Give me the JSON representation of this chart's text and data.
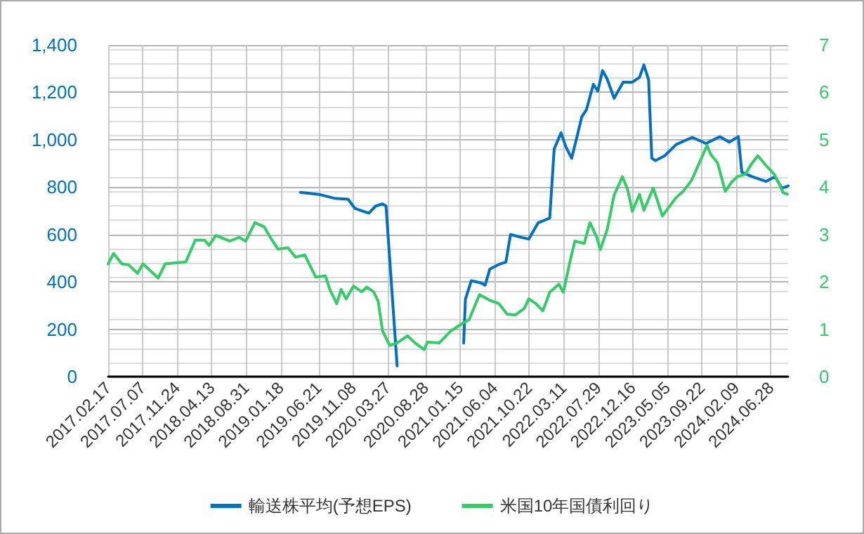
{
  "chart_data": {
    "type": "line",
    "xlim": [
      "2017-02-17",
      "2024-09-06"
    ],
    "xticks": [
      {
        "value": "2017-02-17",
        "label": "2017.02.17"
      },
      {
        "value": "2017-07-07",
        "label": "2017.07.07"
      },
      {
        "value": "2017-11-24",
        "label": "2017.11.24"
      },
      {
        "value": "2018-04-13",
        "label": "2018.04.13"
      },
      {
        "value": "2018-08-31",
        "label": "2018.08.31"
      },
      {
        "value": "2019-01-18",
        "label": "2019.01.18"
      },
      {
        "value": "2019-06-21",
        "label": "2019.06.21"
      },
      {
        "value": "2019-11-08",
        "label": "2019.11.08"
      },
      {
        "value": "2020-03-27",
        "label": "2020.03.27"
      },
      {
        "value": "2020-08-28",
        "label": "2020.08.28"
      },
      {
        "value": "2021-01-15",
        "label": "2021.01.15"
      },
      {
        "value": "2021-06-04",
        "label": "2021.06.04"
      },
      {
        "value": "2021-10-22",
        "label": "2021.10.22"
      },
      {
        "value": "2022-03-11",
        "label": "2022.03.11"
      },
      {
        "value": "2022-07-29",
        "label": "2022.07.29"
      },
      {
        "value": "2022-12-16",
        "label": "2022.12.16"
      },
      {
        "value": "2023-05-05",
        "label": "2023.05.05"
      },
      {
        "value": "2023-09-22",
        "label": "2023.09.22"
      },
      {
        "value": "2024-02-09",
        "label": "2024.02.09"
      },
      {
        "value": "2024-06-28",
        "label": "2024.06.28"
      }
    ],
    "ylim": [
      0,
      1400
    ],
    "yticks": [
      0,
      200,
      400,
      600,
      800,
      {
        "value": 1000,
        "label": "1,000"
      },
      {
        "value": 1200,
        "label": "1,200"
      },
      {
        "value": 1400,
        "label": "1,400"
      }
    ],
    "y2lim": [
      0,
      7
    ],
    "y2ticks": [
      0,
      1,
      2,
      3,
      4,
      5,
      6,
      7
    ],
    "grid": true,
    "legend": "bottom",
    "marker": "none",
    "line_style": "solid",
    "series": [
      {
        "name": "輸送株平均(予想EPS)",
        "color": "#0070c0",
        "x": [
          "2019-04-08",
          "2019-06-28",
          "2019-08-23",
          "2019-10-18",
          "2019-11-15",
          "2020-01-10",
          "2020-02-07",
          "2020-03-06",
          "2020-03-20",
          "2020-05-04",
          "2020-09-04",
          "2021-01-29",
          "2021-02-05",
          "2021-03-01",
          "2021-04-08",
          "2021-04-26",
          "2021-05-15",
          "2021-06-21",
          "2021-07-19",
          "2021-08-07",
          "2021-09-23",
          "2021-10-20",
          "2021-11-27",
          "2022-01-13",
          "2022-01-31",
          "2022-02-28",
          "2022-03-19",
          "2022-04-12",
          "2022-05-05",
          "2022-05-23",
          "2022-06-11",
          "2022-07-09",
          "2022-07-27",
          "2022-08-15",
          "2022-09-03",
          "2022-10-01",
          "2022-11-07",
          "2022-12-14",
          "2023-01-12",
          "2023-01-30",
          "2023-02-18",
          "2023-03-03",
          "2023-03-18",
          "2023-04-24",
          "2023-06-10",
          "2023-08-14",
          "2023-10-09",
          "2023-12-04",
          "2024-01-11",
          "2024-02-17",
          "2024-03-02",
          "2024-04-13",
          "2024-06-08",
          "2024-07-15",
          "2024-08-12",
          "2024-09-06"
        ],
        "values": [
          778,
          768,
          753,
          749,
          710,
          690,
          720,
          729,
          720,
          45,
          null,
          142,
          327,
          405,
          396,
          386,
          454,
          474,
          483,
          600,
          587,
          581,
          649,
          669,
          961,
          1029,
          971,
          922,
          1019,
          1097,
          1127,
          1234,
          1205,
          1292,
          1257,
          1175,
          1243,
          1243,
          1263,
          1316,
          1253,
          922,
          912,
          932,
          980,
          1010,
          984,
          1013,
          990,
          1013,
          863,
          844,
          824,
          844,
          795,
          805
        ]
      },
      {
        "name": "米国10年国債利回り",
        "color": "#33cc66",
        "axis": "y2",
        "x": [
          "2017-02-17",
          "2017-03-11",
          "2017-04-13",
          "2017-05-11",
          "2017-06-16",
          "2017-07-08",
          "2017-09-08",
          "2017-10-06",
          "2017-11-13",
          "2017-12-29",
          "2018-02-05",
          "2018-03-15",
          "2018-04-02",
          "2018-04-30",
          "2018-06-25",
          "2018-08-02",
          "2018-08-29",
          "2018-10-05",
          "2018-11-12",
          "2018-12-10",
          "2019-01-07",
          "2019-02-16",
          "2019-03-19",
          "2019-04-25",
          "2019-06-09",
          "2019-07-18",
          "2019-08-05",
          "2019-09-02",
          "2019-09-20",
          "2019-10-10",
          "2019-11-09",
          "2019-12-13",
          "2020-01-02",
          "2020-01-30",
          "2020-02-17",
          "2020-03-06",
          "2020-04-04",
          "2020-05-04",
          "2020-06-15",
          "2020-07-16",
          "2020-08-22",
          "2020-09-04",
          "2020-10-22",
          "2020-12-07",
          "2021-01-23",
          "2021-02-20",
          "2021-04-03",
          "2021-05-15",
          "2021-06-21",
          "2021-07-24",
          "2021-08-26",
          "2021-10-02",
          "2021-10-20",
          "2021-11-18",
          "2021-12-16",
          "2022-01-13",
          "2022-02-19",
          "2022-03-09",
          "2022-04-07",
          "2022-04-25",
          "2022-06-02",
          "2022-06-25",
          "2022-07-22",
          "2022-08-06",
          "2022-09-03",
          "2022-10-01",
          "2022-11-04",
          "2022-11-26",
          "2022-12-14",
          "2023-01-12",
          "2023-01-30",
          "2023-03-09",
          "2023-04-15",
          "2023-05-13",
          "2023-06-10",
          "2023-07-08",
          "2023-08-11",
          "2023-09-16",
          "2023-10-13",
          "2023-10-28",
          "2023-11-25",
          "2023-12-26",
          "2024-01-20",
          "2024-02-13",
          "2024-03-16",
          "2024-04-13",
          "2024-05-06",
          "2024-06-08",
          "2024-07-12",
          "2024-08-03",
          "2024-08-17",
          "2024-09-03"
        ],
        "values": [
          2.38,
          2.6,
          2.38,
          2.36,
          2.18,
          2.38,
          2.08,
          2.38,
          2.4,
          2.42,
          2.88,
          2.88,
          2.77,
          2.98,
          2.86,
          2.94,
          2.86,
          3.25,
          3.16,
          2.91,
          2.69,
          2.72,
          2.52,
          2.57,
          2.1,
          2.13,
          1.84,
          1.54,
          1.84,
          1.64,
          1.91,
          1.79,
          1.89,
          1.79,
          1.59,
          0.96,
          0.66,
          0.71,
          0.86,
          0.71,
          0.57,
          0.73,
          0.71,
          0.96,
          1.12,
          1.2,
          1.73,
          1.61,
          1.54,
          1.32,
          1.3,
          1.44,
          1.64,
          1.54,
          1.39,
          1.78,
          1.95,
          1.78,
          2.47,
          2.86,
          2.81,
          3.25,
          2.95,
          2.68,
          3.1,
          3.83,
          4.22,
          3.93,
          3.49,
          3.85,
          3.51,
          3.98,
          3.39,
          3.59,
          3.78,
          3.91,
          4.14,
          4.56,
          4.88,
          4.69,
          4.51,
          3.91,
          4.1,
          4.22,
          4.27,
          4.51,
          4.66,
          4.46,
          4.27,
          4.04,
          3.88,
          3.85
        ]
      }
    ]
  }
}
